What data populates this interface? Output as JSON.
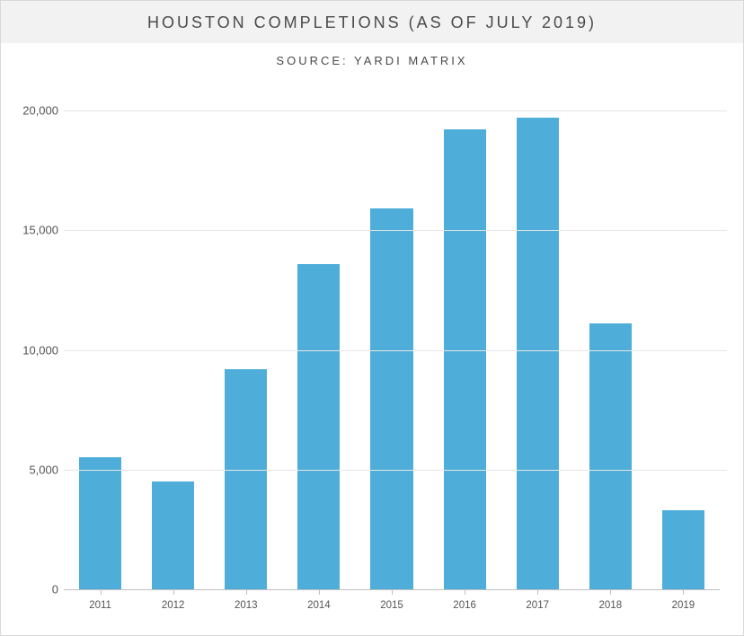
{
  "title": "HOUSTON COMPLETIONS (AS OF JULY 2019)",
  "subtitle": "SOURCE: YARDI MATRIX",
  "chart": {
    "type": "bar",
    "categories": [
      "2011",
      "2012",
      "2013",
      "2014",
      "2015",
      "2016",
      "2017",
      "2018",
      "2019"
    ],
    "values": [
      5500,
      4500,
      9200,
      13600,
      15900,
      19200,
      19700,
      11100,
      3300
    ],
    "bar_color": "#4eadd9",
    "background_color": "#ffffff",
    "grid_color": "#e6e6e6",
    "axis_color": "#bfbfbf",
    "text_color": "#555555",
    "title_bg": "#f2f2f2",
    "title_fontsize": 18,
    "subtitle_fontsize": 13,
    "label_fontsize": 13,
    "xlabel_fontsize": 11.5,
    "ylim": [
      0,
      20000
    ],
    "ytick_step": 5000,
    "ytick_labels": [
      "0",
      "5,000",
      "10,000",
      "15,000",
      "20,000"
    ],
    "bar_width_ratio": 0.58
  }
}
